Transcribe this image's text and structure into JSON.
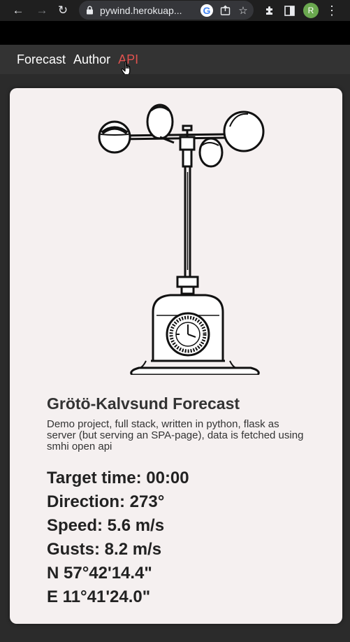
{
  "browser": {
    "url": "pywind.herokuap...",
    "avatar_letter": "R",
    "icons": [
      "back-arrow-icon",
      "forward-arrow-icon",
      "reload-icon",
      "lock-icon",
      "google-icon",
      "share-icon",
      "star-icon",
      "extensions-icon",
      "side-panel-icon",
      "profile-avatar",
      "menu-kebab-icon"
    ]
  },
  "nav": {
    "items": [
      {
        "label": "Forecast"
      },
      {
        "label": "Author"
      },
      {
        "label": "API"
      }
    ],
    "active_color": "#e0524f"
  },
  "card": {
    "title": "Grötö-Kalvsund Forecast",
    "description": "Demo project, full stack, written in python, flask as server (but serving an SPA-page), data is fetched using smhi open api",
    "stats": {
      "target_time": "Target time: 00:00",
      "direction": "Direction: 273°",
      "speed": "Speed: 5.6 m/s",
      "gusts": "Gusts: 8.2 m/s",
      "lat": "N 57°42'14.4\"",
      "lon": "E 11°41'24.0\""
    }
  }
}
